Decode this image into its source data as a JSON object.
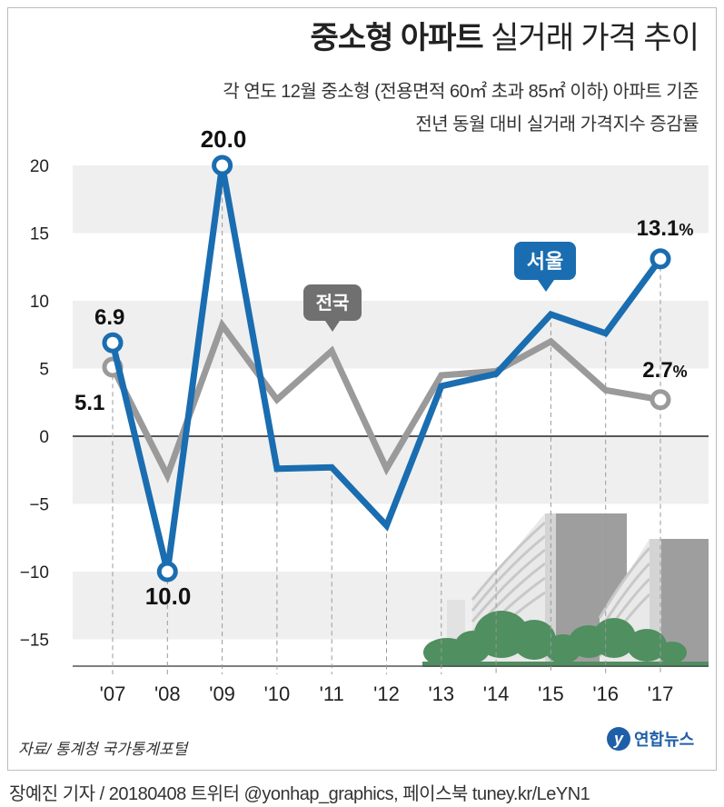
{
  "header": {
    "title_bold": "중소형 아파트",
    "title_light": "실거래 가격  추이",
    "subtitle_line1": "각 연도 12월 중소형 (전용면적 60㎡ 초과 85㎡ 이하) 아파트 기준",
    "subtitle_line2": "전년 동월 대비 실거래 가격지수 증감률"
  },
  "footer": {
    "source": "자료/ 통계청 국가통계포털",
    "byline": "장예진 기자 / 20180408 트위터 @yonhap_graphics, 페이스북 tuney.kr/LeYN1",
    "logo_text": "연합뉴스"
  },
  "chart_data": {
    "type": "line",
    "categories": [
      "'07",
      "'08",
      "'09",
      "'10",
      "'11",
      "'12",
      "'13",
      "'14",
      "'15",
      "'16",
      "'17"
    ],
    "y_ticks": [
      "20",
      "15",
      "10",
      "5",
      "0",
      "−5",
      "−10",
      "−15"
    ],
    "ylim": [
      -17,
      21
    ],
    "grid": "horizontal bands",
    "series": [
      {
        "name": "서울",
        "color": "#1a6db0",
        "values": [
          6.9,
          -10.0,
          20.0,
          -2.4,
          -2.3,
          -6.6,
          3.7,
          4.6,
          9.0,
          7.6,
          13.1
        ]
      },
      {
        "name": "전국",
        "color": "#9a9a9a",
        "values": [
          5.1,
          -2.9,
          8.2,
          2.7,
          6.3,
          -2.4,
          4.5,
          4.8,
          7.0,
          3.4,
          2.7
        ]
      }
    ],
    "labels": {
      "seoul_first": "6.9",
      "seoul_min": "10.0",
      "seoul_max": "20.0",
      "seoul_last": "13.1",
      "seoul_last_unit": "%",
      "national_first": "5.1",
      "national_last": "2.7",
      "national_last_unit": "%"
    },
    "callouts": {
      "seoul": "서울",
      "national": "전국"
    }
  }
}
